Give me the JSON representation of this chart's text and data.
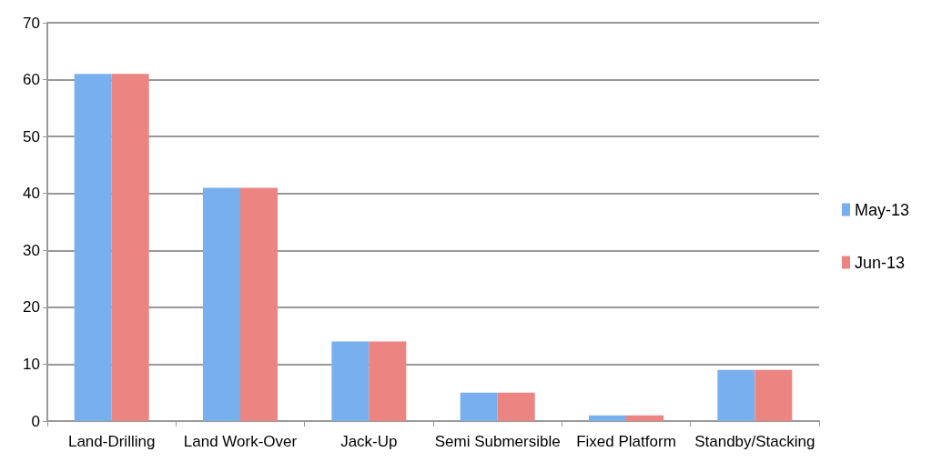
{
  "chart_data": {
    "type": "bar",
    "categories": [
      "Land-Drilling",
      "Land Work-Over",
      "Jack-Up",
      "Semi Submersible",
      "Fixed Platform",
      "Standby/Stacking"
    ],
    "series": [
      {
        "name": "May-13",
        "color": "#78afee",
        "values": [
          61,
          41,
          14,
          5,
          1,
          9
        ]
      },
      {
        "name": "Jun-13",
        "color": "#ec8581",
        "values": [
          61,
          41,
          14,
          5,
          1,
          9
        ]
      }
    ],
    "ylim": [
      0,
      70
    ],
    "yticks": [
      0,
      10,
      20,
      30,
      40,
      50,
      60,
      70
    ],
    "grid": "y",
    "legend": "right"
  }
}
